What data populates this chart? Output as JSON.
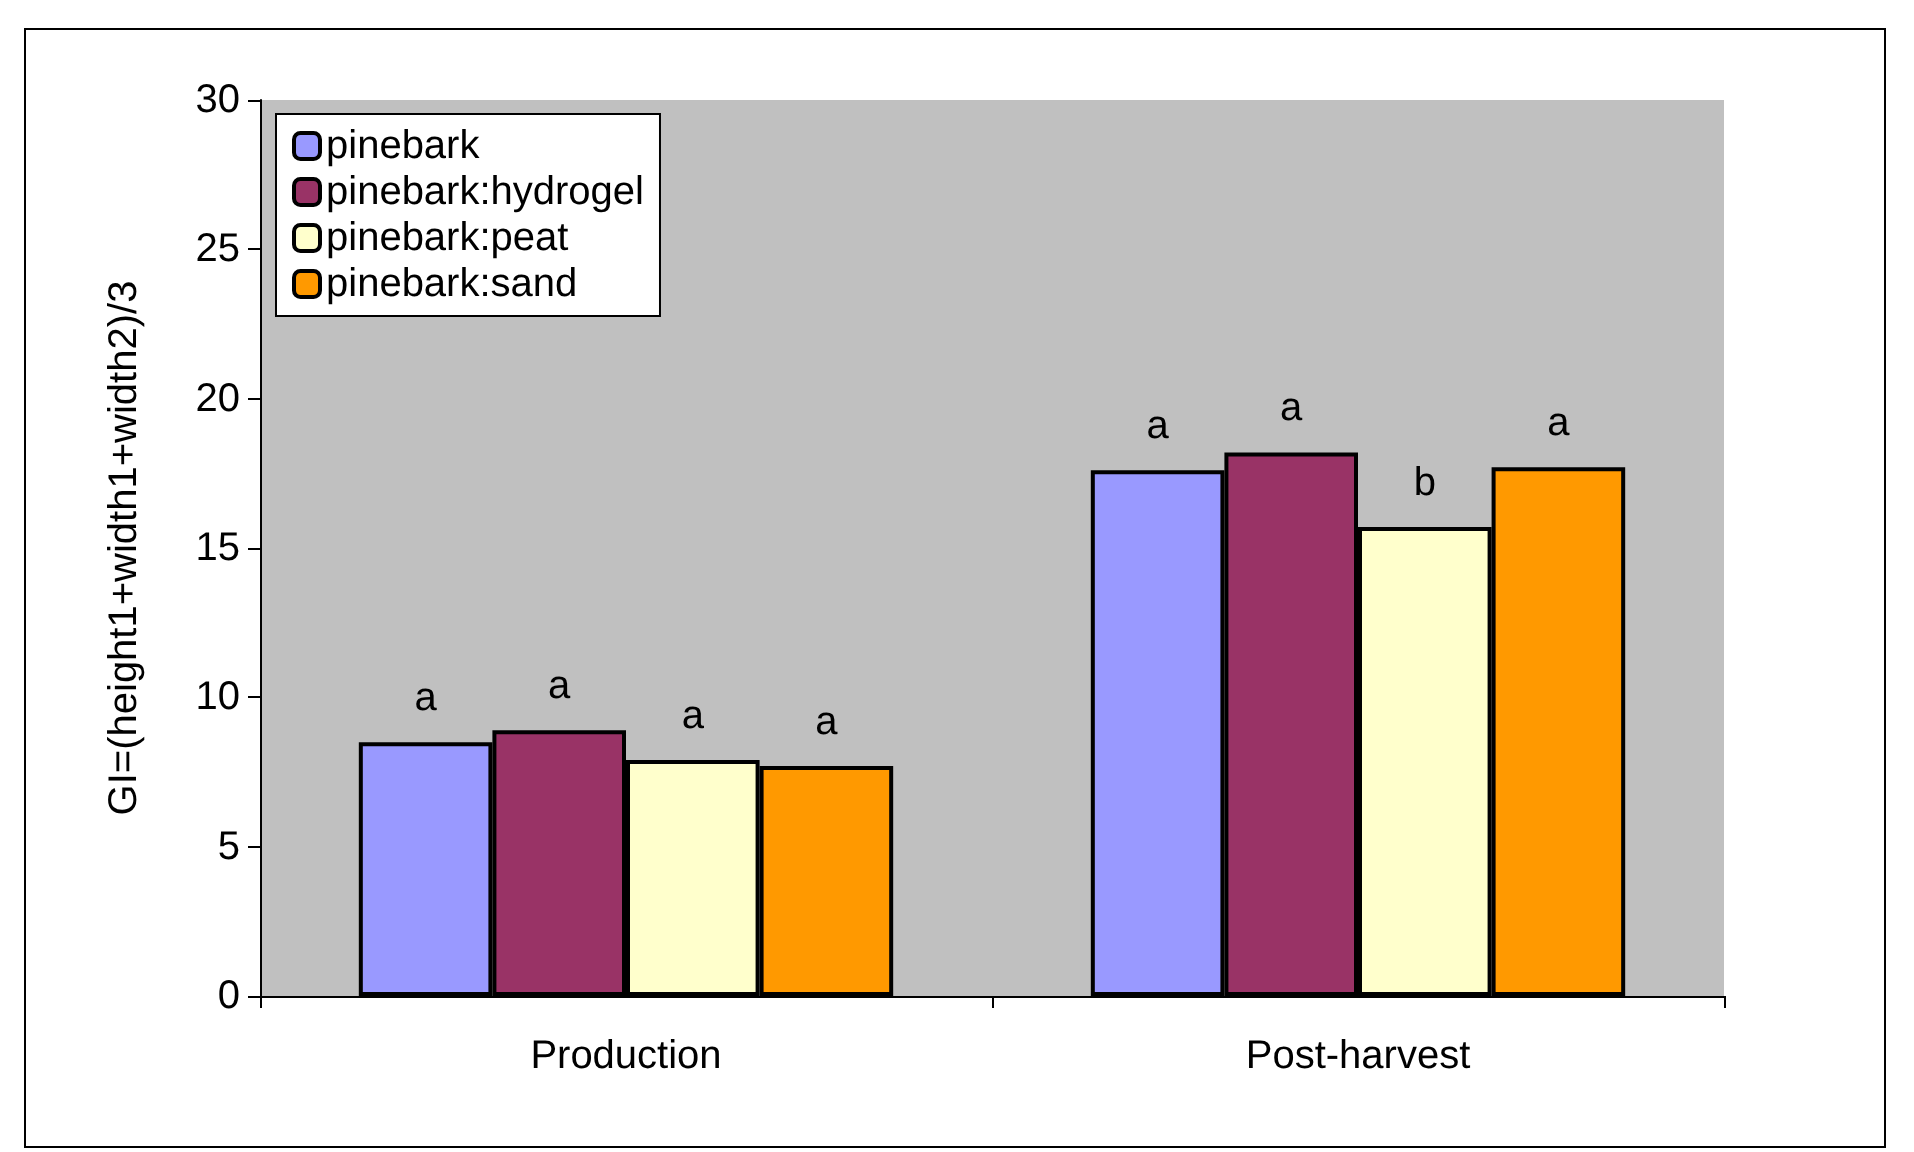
{
  "chart_data": {
    "type": "bar",
    "ylabel": "GI=(height1+width1+width2)/3",
    "categories": [
      "Production",
      "Post-harvest"
    ],
    "series": [
      {
        "name": "pinebark",
        "color": "#9999ff",
        "values": [
          8.5,
          17.6
        ],
        "value_labels": [
          "a",
          "a"
        ]
      },
      {
        "name": "pinebark:hydrogel",
        "color": "#993366",
        "values": [
          8.9,
          18.2
        ],
        "value_labels": [
          "a",
          "a"
        ]
      },
      {
        "name": "pinebark:peat",
        "color": "#ffffcc",
        "values": [
          7.9,
          15.7
        ],
        "value_labels": [
          "a",
          "b"
        ]
      },
      {
        "name": "pinebark:sand",
        "color": "#ff9900",
        "values": [
          7.7,
          17.7
        ],
        "value_labels": [
          "a",
          "a"
        ]
      }
    ],
    "ylim": [
      0,
      30
    ],
    "yticks": [
      0,
      5,
      10,
      15,
      20,
      25,
      30
    ],
    "grid": false,
    "legend": "top left"
  }
}
